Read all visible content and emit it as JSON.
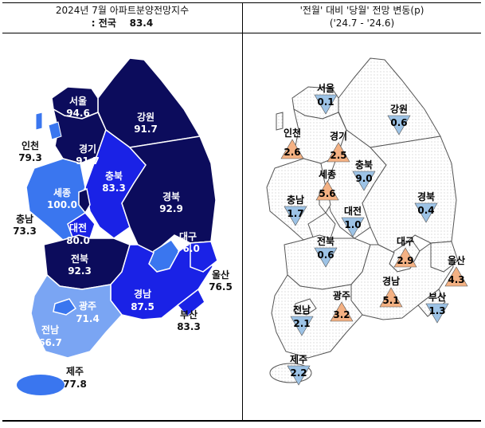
{
  "left_panel": {
    "title_line1": "2024년 7월 아파트분양전망지수",
    "title_line2_prefix": ": 전국",
    "title_line2_value": "83.4"
  },
  "right_panel": {
    "title_line1": "'전월' 대비 '당월' 전망 변동(p)",
    "title_line2": "('24.7  -  '24.6)"
  },
  "colors": {
    "dark_navy": "#0c0c5c",
    "bright_blue": "#1a22e6",
    "mid_blue": "#3a76ef",
    "light_blue": "#7aa5f3",
    "up_triangle": "#f4b183",
    "down_triangle": "#9dc3e6"
  },
  "regions": {
    "seoul": {
      "name": "서울",
      "index": "94.6",
      "change": "0.1",
      "direction": "down"
    },
    "gangwon": {
      "name": "강원",
      "index": "91.7",
      "change": "0.6",
      "direction": "down"
    },
    "incheon": {
      "name": "인천",
      "index": "79.3",
      "change": "2.6",
      "direction": "up"
    },
    "gyeonggi": {
      "name": "경기",
      "index": "91.7",
      "change": "2.5",
      "direction": "up"
    },
    "sejong": {
      "name": "세종",
      "index": "100.0",
      "change": "5.6",
      "direction": "up"
    },
    "chungbuk": {
      "name": "충북",
      "index": "83.3",
      "change": "9.0",
      "direction": "down"
    },
    "chungnam": {
      "name": "충남",
      "index": "73.3",
      "change": "1.7",
      "direction": "down"
    },
    "daejeon": {
      "name": "대전",
      "index": "80.0",
      "change": "1.0",
      "direction": "down"
    },
    "gyeongbuk": {
      "name": "경북",
      "index": "92.9",
      "change": "0.4",
      "direction": "down"
    },
    "daegu": {
      "name": "대구",
      "index": "76.0",
      "change": "2.9",
      "direction": "up"
    },
    "jeonbuk": {
      "name": "전북",
      "index": "92.3",
      "change": "0.6",
      "direction": "down"
    },
    "ulsan": {
      "name": "울산",
      "index": "76.5",
      "change": "4.3",
      "direction": "up"
    },
    "gwangju": {
      "name": "광주",
      "index": "71.4",
      "change": "3.2",
      "direction": "up"
    },
    "gyeongnam": {
      "name": "경남",
      "index": "87.5",
      "change": "5.1",
      "direction": "up"
    },
    "jeonnam": {
      "name": "전남",
      "index": "66.7",
      "change": "2.1",
      "direction": "down"
    },
    "busan": {
      "name": "부산",
      "index": "83.3",
      "change": "1.3",
      "direction": "down"
    },
    "jeju": {
      "name": "제주",
      "index": "77.8",
      "change": "2.2",
      "direction": "down"
    }
  }
}
